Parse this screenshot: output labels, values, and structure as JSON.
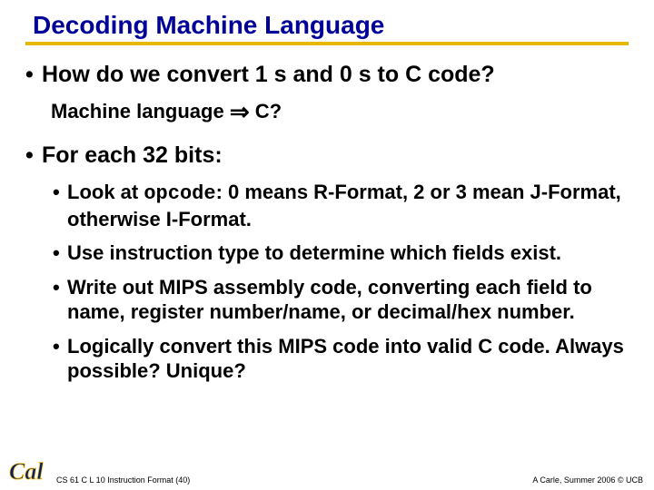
{
  "colors": {
    "title": "#000099",
    "underline": "#e6b800",
    "text": "#000000",
    "background": "#ffffff",
    "logo_blue": "#0a1f5c",
    "logo_gold": "#ffcc33"
  },
  "title": "Decoding Machine Language",
  "bullets": [
    {
      "text": "How do we convert 1 s and 0 s to C code?",
      "sub": [
        {
          "prefix": "Machine language ",
          "arrow": "⇒",
          "suffix": " C?"
        }
      ]
    },
    {
      "text": "For each 32 bits:",
      "sub2": [
        {
          "pre": "Look at ",
          "code": "opcode",
          "post": ": 0 means R-Format, 2 or 3 mean J-Format, otherwise I-Format."
        },
        {
          "pre": "Use instruction type to determine which fields exist.",
          "code": "",
          "post": ""
        },
        {
          "pre": "Write out MIPS assembly code, converting each field to name, register number/name, or decimal/hex number.",
          "code": "",
          "post": ""
        },
        {
          "pre": "Logically convert this MIPS code into valid C code.  Always possible? Unique?",
          "code": "",
          "post": ""
        }
      ]
    }
  ],
  "footer": {
    "left": "CS 61 C L 10 Instruction Format (40)",
    "right": "A Carle, Summer 2006 © UCB"
  },
  "logo_text": "Cal"
}
